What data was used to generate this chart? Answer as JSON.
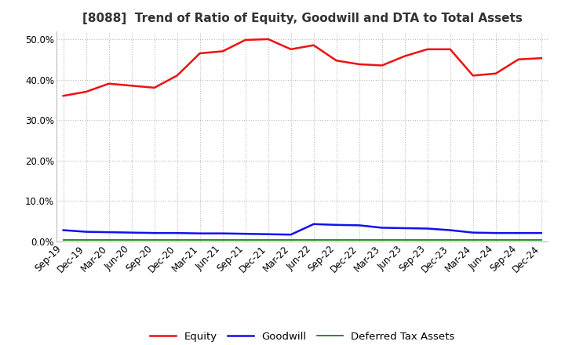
{
  "title": "[8088]  Trend of Ratio of Equity, Goodwill and DTA to Total Assets",
  "x_labels": [
    "Sep-19",
    "Dec-19",
    "Mar-20",
    "Jun-20",
    "Sep-20",
    "Dec-20",
    "Mar-21",
    "Jun-21",
    "Sep-21",
    "Dec-21",
    "Mar-22",
    "Jun-22",
    "Sep-22",
    "Dec-22",
    "Mar-23",
    "Jun-23",
    "Sep-23",
    "Dec-23",
    "Mar-24",
    "Jun-24",
    "Sep-24",
    "Dec-24"
  ],
  "equity": [
    36.0,
    37.0,
    39.0,
    38.5,
    38.0,
    41.0,
    46.5,
    47.0,
    49.8,
    50.0,
    47.5,
    48.5,
    44.7,
    43.8,
    43.5,
    45.8,
    47.5,
    47.5,
    41.0,
    41.5,
    45.0,
    45.3
  ],
  "goodwill": [
    2.8,
    2.4,
    2.3,
    2.2,
    2.1,
    2.1,
    2.0,
    2.0,
    1.9,
    1.8,
    1.7,
    4.3,
    4.1,
    4.0,
    3.4,
    3.3,
    3.2,
    2.8,
    2.2,
    2.1,
    2.1,
    2.1
  ],
  "dta": [
    0.4,
    0.4,
    0.4,
    0.4,
    0.4,
    0.4,
    0.4,
    0.4,
    0.4,
    0.4,
    0.4,
    0.4,
    0.4,
    0.4,
    0.4,
    0.4,
    0.4,
    0.4,
    0.4,
    0.4,
    0.4,
    0.4
  ],
  "equity_color": "#EE1111",
  "goodwill_color": "#1111EE",
  "dta_color": "#118811",
  "ylim": [
    0,
    52
  ],
  "yticks": [
    0,
    10,
    20,
    30,
    40,
    50
  ],
  "background_color": "#FFFFFF",
  "grid_color": "#BBBBBB",
  "title_fontsize": 11,
  "tick_fontsize": 8.5,
  "legend_fontsize": 9.5
}
